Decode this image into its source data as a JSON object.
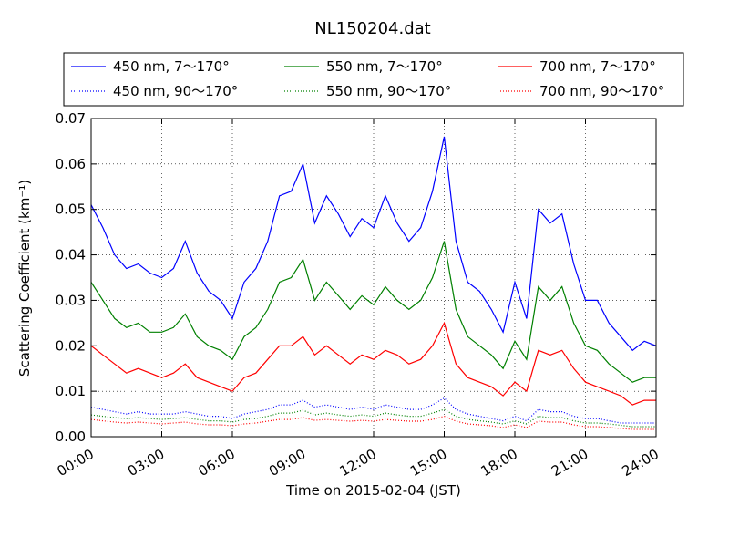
{
  "chart_data": {
    "type": "line",
    "title": "NL150204.dat",
    "xlabel": "Time on 2015-02-04 (JST)",
    "ylabel": "Scattering Coefficient (km⁻¹)",
    "xlim_hours": [
      0,
      24
    ],
    "ylim": [
      0,
      0.07
    ],
    "x_ticks": [
      "00:00",
      "03:00",
      "06:00",
      "09:00",
      "12:00",
      "15:00",
      "18:00",
      "21:00",
      "24:00"
    ],
    "y_ticks": [
      "0.00",
      "0.01",
      "0.02",
      "0.03",
      "0.04",
      "0.05",
      "0.06",
      "0.07"
    ],
    "grid": true,
    "legend_position": "above plot",
    "x_hours": [
      0,
      0.5,
      1,
      1.5,
      2,
      2.5,
      3,
      3.5,
      4,
      4.5,
      5,
      5.5,
      6,
      6.5,
      7,
      7.5,
      8,
      8.5,
      9,
      9.5,
      10,
      10.5,
      11,
      11.5,
      12,
      12.5,
      13,
      13.5,
      14,
      14.5,
      15,
      15.5,
      16,
      16.5,
      17,
      17.5,
      18,
      18.5,
      19,
      19.5,
      20,
      20.5,
      21,
      21.5,
      22,
      22.5,
      23,
      23.5,
      24
    ],
    "series": [
      {
        "name": "450 nm, 7～170°",
        "color": "#0000ff",
        "style": "solid",
        "values": [
          0.051,
          0.046,
          0.04,
          0.037,
          0.038,
          0.036,
          0.035,
          0.037,
          0.043,
          0.036,
          0.032,
          0.03,
          0.026,
          0.034,
          0.037,
          0.043,
          0.053,
          0.054,
          0.06,
          0.047,
          0.053,
          0.049,
          0.044,
          0.048,
          0.046,
          0.053,
          0.047,
          0.043,
          0.046,
          0.054,
          0.066,
          0.043,
          0.034,
          0.032,
          0.028,
          0.023,
          0.034,
          0.026,
          0.05,
          0.047,
          0.049,
          0.038,
          0.03,
          0.03,
          0.025,
          0.022,
          0.019,
          0.021,
          0.02
        ]
      },
      {
        "name": "550 nm, 7～170°",
        "color": "#008000",
        "style": "solid",
        "values": [
          0.034,
          0.03,
          0.026,
          0.024,
          0.025,
          0.023,
          0.023,
          0.024,
          0.027,
          0.022,
          0.02,
          0.019,
          0.017,
          0.022,
          0.024,
          0.028,
          0.034,
          0.035,
          0.039,
          0.03,
          0.034,
          0.031,
          0.028,
          0.031,
          0.029,
          0.033,
          0.03,
          0.028,
          0.03,
          0.035,
          0.043,
          0.028,
          0.022,
          0.02,
          0.018,
          0.015,
          0.021,
          0.017,
          0.033,
          0.03,
          0.033,
          0.025,
          0.02,
          0.019,
          0.016,
          0.014,
          0.012,
          0.013,
          0.013
        ]
      },
      {
        "name": "700 nm, 7～170°",
        "color": "#ff0000",
        "style": "solid",
        "values": [
          0.02,
          0.018,
          0.016,
          0.014,
          0.015,
          0.014,
          0.013,
          0.014,
          0.016,
          0.013,
          0.012,
          0.011,
          0.01,
          0.013,
          0.014,
          0.017,
          0.02,
          0.02,
          0.022,
          0.018,
          0.02,
          0.018,
          0.016,
          0.018,
          0.017,
          0.019,
          0.018,
          0.016,
          0.017,
          0.02,
          0.025,
          0.016,
          0.013,
          0.012,
          0.011,
          0.009,
          0.012,
          0.01,
          0.019,
          0.018,
          0.019,
          0.015,
          0.012,
          0.011,
          0.01,
          0.009,
          0.007,
          0.008,
          0.008
        ]
      },
      {
        "name": "450 nm, 90～170°",
        "color": "#0000ff",
        "style": "dotted",
        "values": [
          0.0065,
          0.006,
          0.0055,
          0.005,
          0.0055,
          0.005,
          0.005,
          0.005,
          0.0055,
          0.005,
          0.0045,
          0.0045,
          0.004,
          0.005,
          0.0055,
          0.006,
          0.007,
          0.007,
          0.008,
          0.0065,
          0.007,
          0.0065,
          0.006,
          0.0065,
          0.006,
          0.007,
          0.0065,
          0.006,
          0.006,
          0.007,
          0.0085,
          0.006,
          0.005,
          0.0045,
          0.004,
          0.0035,
          0.0045,
          0.0035,
          0.006,
          0.0055,
          0.0055,
          0.0045,
          0.004,
          0.004,
          0.0035,
          0.003,
          0.003,
          0.003,
          0.003
        ]
      },
      {
        "name": "550 nm, 90～170°",
        "color": "#008000",
        "style": "dotted",
        "values": [
          0.0048,
          0.0045,
          0.0042,
          0.004,
          0.0042,
          0.004,
          0.0038,
          0.004,
          0.0042,
          0.0038,
          0.0035,
          0.0035,
          0.0032,
          0.0038,
          0.004,
          0.0045,
          0.0052,
          0.0052,
          0.0058,
          0.0048,
          0.0052,
          0.0048,
          0.0045,
          0.0048,
          0.0045,
          0.0052,
          0.0048,
          0.0045,
          0.0045,
          0.0052,
          0.006,
          0.0045,
          0.0038,
          0.0035,
          0.0032,
          0.0028,
          0.0035,
          0.0028,
          0.0045,
          0.0042,
          0.0042,
          0.0035,
          0.003,
          0.003,
          0.0028,
          0.0025,
          0.0022,
          0.0022,
          0.0022
        ]
      },
      {
        "name": "700 nm, 90～170°",
        "color": "#ff0000",
        "style": "dotted",
        "values": [
          0.0038,
          0.0035,
          0.0032,
          0.003,
          0.0032,
          0.003,
          0.0028,
          0.003,
          0.0032,
          0.0028,
          0.0026,
          0.0026,
          0.0024,
          0.0028,
          0.003,
          0.0034,
          0.0038,
          0.0038,
          0.0042,
          0.0036,
          0.0038,
          0.0036,
          0.0034,
          0.0036,
          0.0034,
          0.0038,
          0.0036,
          0.0034,
          0.0034,
          0.0038,
          0.0045,
          0.0034,
          0.0028,
          0.0026,
          0.0024,
          0.002,
          0.0026,
          0.002,
          0.0034,
          0.0032,
          0.0032,
          0.0026,
          0.0022,
          0.0022,
          0.002,
          0.0018,
          0.0016,
          0.0016,
          0.0016
        ]
      }
    ]
  }
}
